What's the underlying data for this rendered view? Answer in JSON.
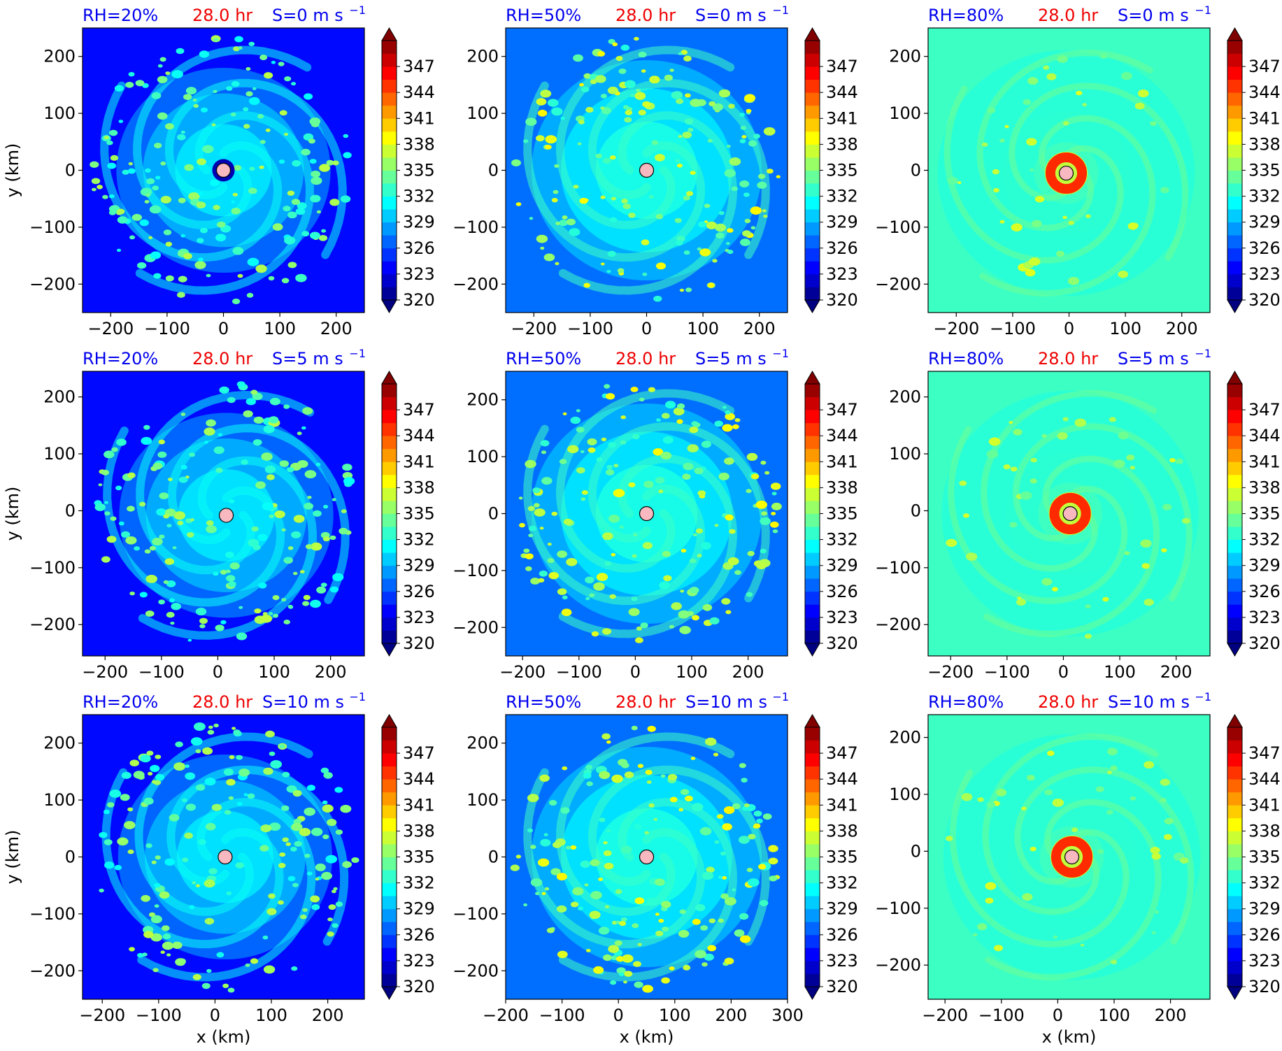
{
  "figure": {
    "time_label": "28.0 hr",
    "xlabel": "x (km)",
    "ylabel": "y (km)",
    "colorbar": {
      "ticks": [
        320,
        323,
        326,
        329,
        332,
        335,
        338,
        341,
        344,
        347
      ],
      "range": [
        320,
        350
      ],
      "step": 1.5,
      "extend": "both",
      "colormap": "jet"
    },
    "center_marker": {
      "shape": "circle",
      "fill": "#f7b8c0",
      "edge": "#000000"
    },
    "header_colors": {
      "rh": "#0000ee",
      "time": "#ee0000",
      "shear": "#0000ee"
    }
  },
  "chart_data": [
    {
      "type": "heatmap",
      "rh_label": "RH=20%",
      "shear_label": "S=0 m s",
      "shear_exp": "−1",
      "xlim": [
        -250,
        250
      ],
      "ylim": [
        -250,
        250
      ],
      "xticks": [
        -200,
        -100,
        0,
        100,
        200
      ],
      "yticks": [
        -200,
        -100,
        0,
        100,
        200
      ],
      "center": [
        0,
        0
      ],
      "background_value": 324,
      "field": "dry"
    },
    {
      "type": "heatmap",
      "rh_label": "RH=50%",
      "shear_label": "S=0 m s",
      "shear_exp": "−1",
      "xlim": [
        -250,
        250
      ],
      "ylim": [
        -250,
        250
      ],
      "xticks": [
        -200,
        -100,
        0,
        100,
        200
      ],
      "yticks": [
        -200,
        -100,
        0,
        100,
        200
      ],
      "center": [
        0,
        0
      ],
      "background_value": 327,
      "field": "moderate"
    },
    {
      "type": "heatmap",
      "rh_label": "RH=80%",
      "shear_label": "S=0 m s",
      "shear_exp": "−1",
      "xlim": [
        -250,
        250
      ],
      "ylim": [
        -250,
        250
      ],
      "xticks": [
        -200,
        -100,
        0,
        100,
        200
      ],
      "yticks": [
        -200,
        -100,
        0,
        100,
        200
      ],
      "center": [
        -5,
        -5
      ],
      "background_value": 333,
      "field": "moist"
    },
    {
      "type": "heatmap",
      "rh_label": "RH=20%",
      "shear_label": "S=5 m s",
      "shear_exp": "−1",
      "xlim": [
        -240,
        260
      ],
      "ylim": [
        -255,
        245
      ],
      "xticks": [
        -200,
        -100,
        0,
        100,
        200
      ],
      "yticks": [
        -200,
        -100,
        0,
        100,
        200
      ],
      "center": [
        15,
        -8
      ],
      "background_value": 324,
      "field": "dry"
    },
    {
      "type": "heatmap",
      "rh_label": "RH=50%",
      "shear_label": "S=5 m s",
      "shear_exp": "−1",
      "xlim": [
        -230,
        270
      ],
      "ylim": [
        -250,
        250
      ],
      "xticks": [
        -200,
        -100,
        0,
        100,
        200
      ],
      "yticks": [
        -200,
        -100,
        0,
        100,
        200
      ],
      "center": [
        20,
        0
      ],
      "background_value": 327,
      "field": "moderate"
    },
    {
      "type": "heatmap",
      "rh_label": "RH=80%",
      "shear_label": "S=5 m s",
      "shear_exp": "−1",
      "xlim": [
        -240,
        260
      ],
      "ylim": [
        -255,
        245
      ],
      "xticks": [
        -200,
        -100,
        0,
        100,
        200
      ],
      "yticks": [
        -200,
        -100,
        0,
        100,
        200
      ],
      "center": [
        12,
        -5
      ],
      "background_value": 333,
      "field": "moist"
    },
    {
      "type": "heatmap",
      "rh_label": "RH=20%",
      "shear_label": "S=10 m s",
      "shear_exp": "−1",
      "xlim": [
        -235,
        265
      ],
      "ylim": [
        -250,
        250
      ],
      "xticks": [
        -200,
        -100,
        0,
        100,
        200
      ],
      "yticks": [
        -200,
        -100,
        0,
        100,
        200
      ],
      "center": [
        18,
        0
      ],
      "background_value": 324,
      "field": "dry"
    },
    {
      "type": "heatmap",
      "rh_label": "RH=50%",
      "shear_label": "S=10 m s",
      "shear_exp": "−1",
      "xlim": [
        -200,
        300
      ],
      "ylim": [
        -250,
        250
      ],
      "xticks": [
        -200,
        -100,
        0,
        100,
        200,
        300
      ],
      "yticks": [
        -200,
        -100,
        0,
        100,
        200
      ],
      "center": [
        50,
        0
      ],
      "background_value": 327,
      "field": "moderate"
    },
    {
      "type": "heatmap",
      "rh_label": "RH=80%",
      "shear_label": "S=10 m s",
      "shear_exp": "−1",
      "xlim": [
        -230,
        270
      ],
      "ylim": [
        -260,
        240
      ],
      "xticks": [
        -200,
        -100,
        0,
        100,
        200
      ],
      "yticks": [
        -200,
        -100,
        0,
        100,
        200
      ],
      "center": [
        25,
        -10
      ],
      "background_value": 333,
      "field": "moist"
    }
  ]
}
